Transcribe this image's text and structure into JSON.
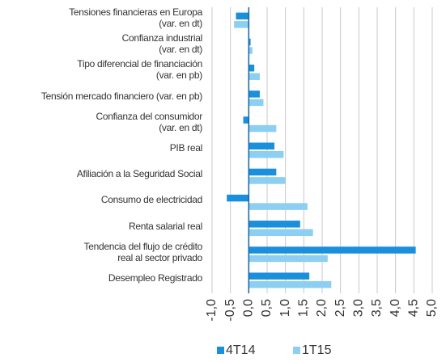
{
  "chart_data": {
    "type": "hbar",
    "categories": [
      "Tensiones financieras en Europa\n(var. en dt)",
      "Confianza industrial\n(var. en dt)",
      "Tipo diferencial de financiación\n(var. en pb)",
      "Tensión mercado financiero (var. en pb)",
      "Confianza del consumidor\n(var. en dt)",
      "PIB real",
      "Afiliación a la Seguridad Social",
      "Consumo de electricidad",
      "Renta salarial real",
      "Tendencia del flujo de crédito\nreal al sector privado",
      "Desempleo Registrado"
    ],
    "series": [
      {
        "name": "4T14",
        "color": "#1a8fdc",
        "values": [
          -0.35,
          0.05,
          0.15,
          0.3,
          -0.15,
          0.7,
          0.75,
          -0.6,
          1.4,
          4.55,
          1.65
        ]
      },
      {
        "name": "1T15",
        "color": "#8ccff2",
        "values": [
          -0.4,
          0.1,
          0.3,
          0.4,
          0.75,
          0.95,
          1.0,
          1.6,
          1.75,
          2.15,
          2.25
        ]
      }
    ],
    "xlim": [
      -1,
      5
    ],
    "xticks": [
      {
        "value": -1,
        "label": "-1,0"
      },
      {
        "value": -0.5,
        "label": "-0,5"
      },
      {
        "value": 0,
        "label": "0,0"
      },
      {
        "value": 0.5,
        "label": "0,5"
      },
      {
        "value": 1,
        "label": "1,0"
      },
      {
        "value": 1.5,
        "label": "1,5"
      },
      {
        "value": 2,
        "label": "2,0"
      },
      {
        "value": 2.5,
        "label": "2,5"
      },
      {
        "value": 3,
        "label": "3,0"
      },
      {
        "value": 3.5,
        "label": "3,5"
      },
      {
        "value": 4,
        "label": "4,0"
      },
      {
        "value": 4.5,
        "label": "4,5"
      },
      {
        "value": 5,
        "label": "5,0"
      }
    ],
    "grid": true
  }
}
